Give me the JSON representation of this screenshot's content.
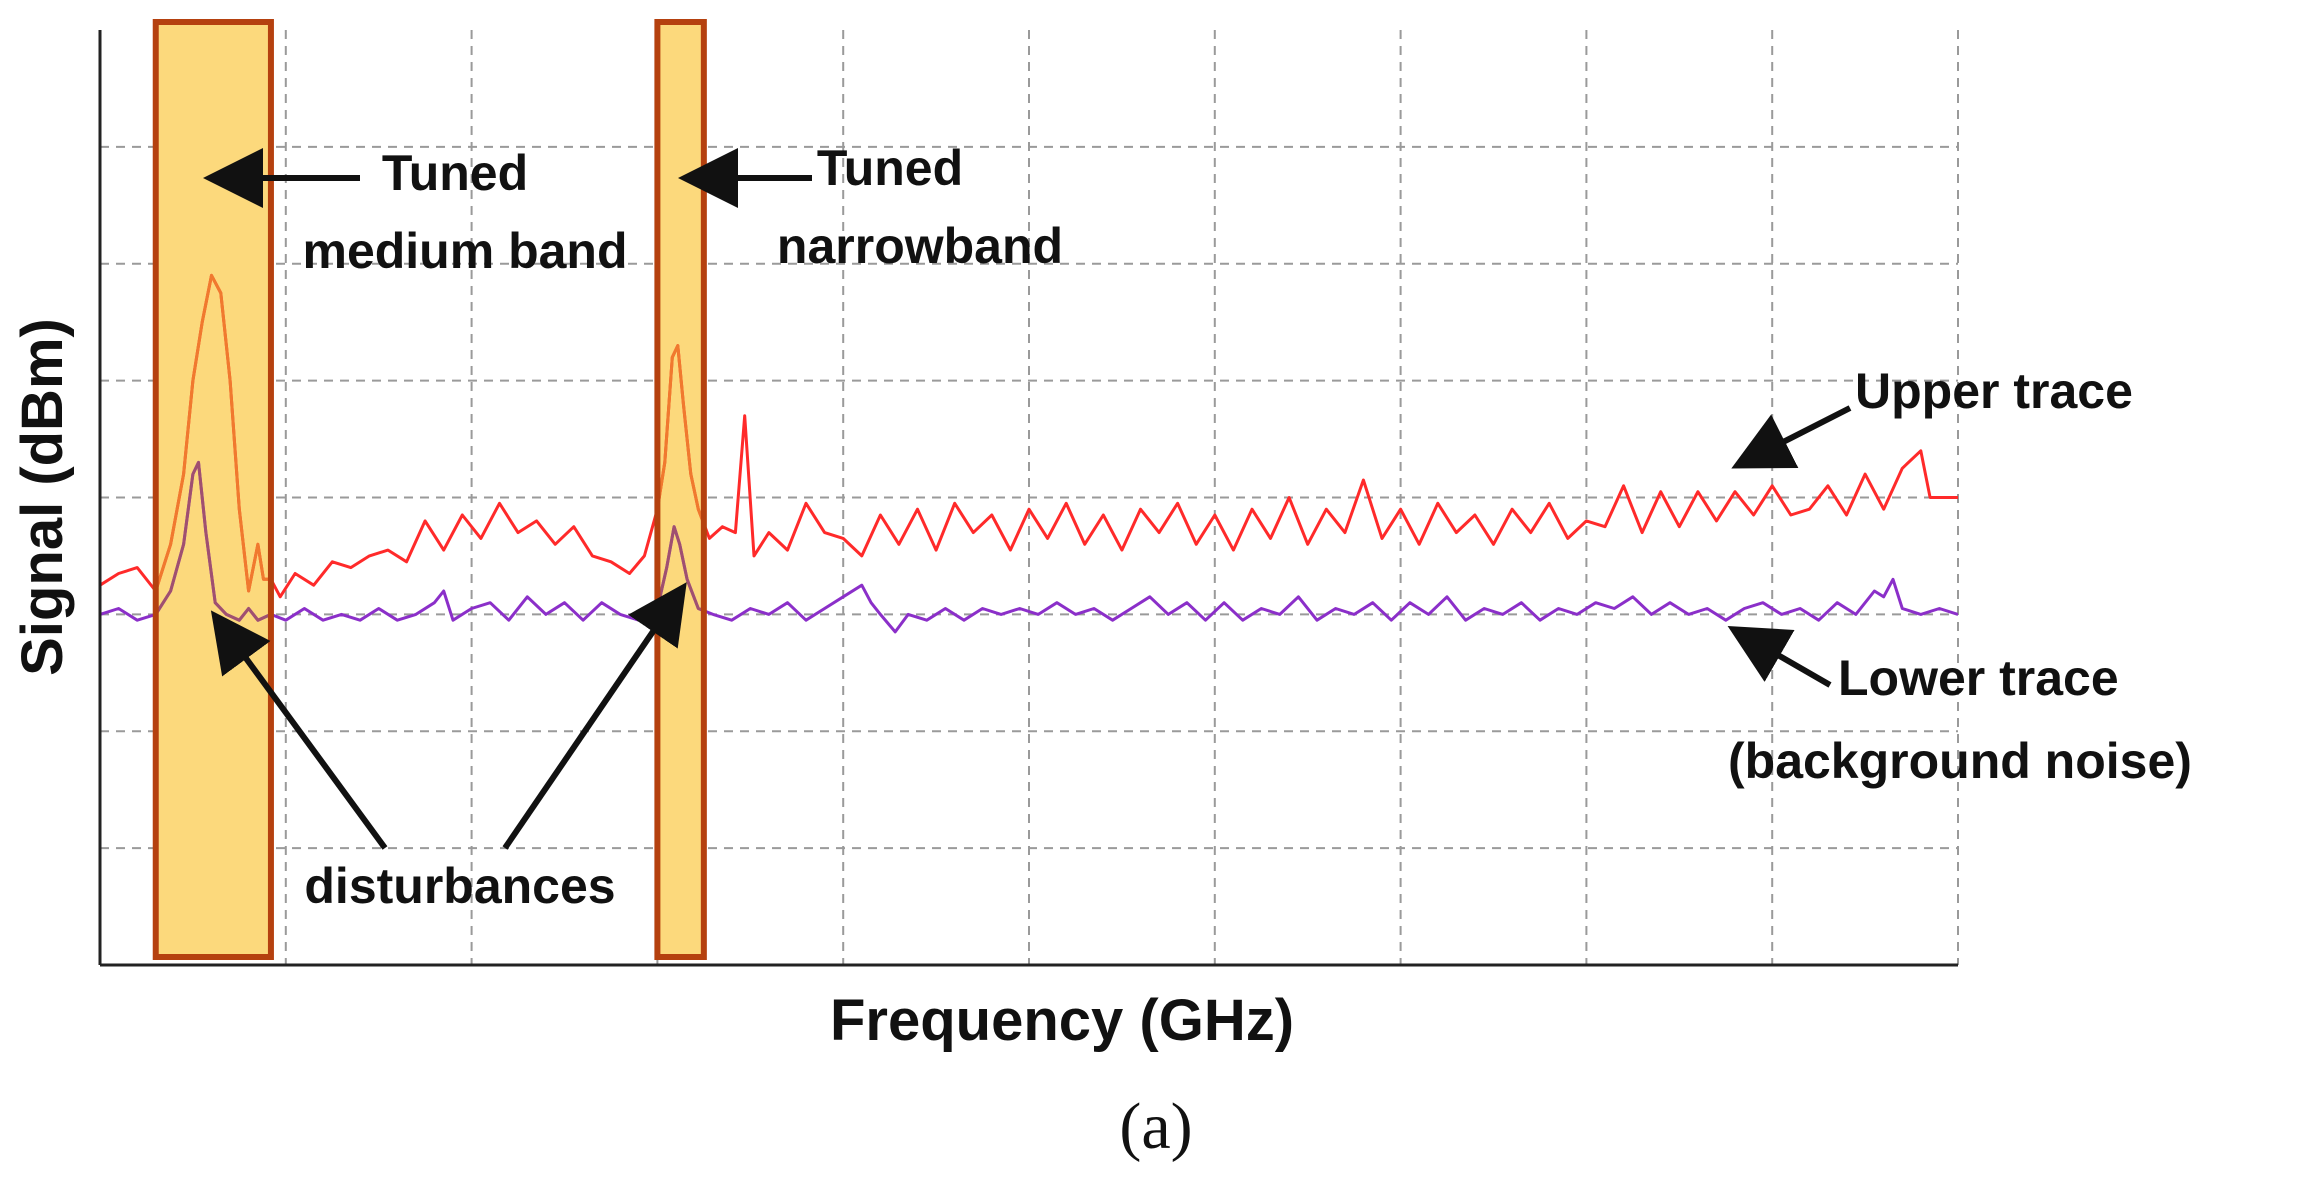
{
  "chart_data": {
    "type": "line",
    "xlabel": "Frequency (GHz)",
    "ylabel": "Signal (dBm)",
    "panel_label": "(a)",
    "x_ticks": 10,
    "y_ticks": 8,
    "xlim": [
      0,
      10
    ],
    "ylim": [
      0,
      8
    ],
    "grid": true,
    "grid_style": "dashed",
    "bands": [
      {
        "name": "medium",
        "x0": 0.3,
        "x1": 0.92,
        "fill": "#fcd97c",
        "stroke": "#b5410f"
      },
      {
        "name": "narrow",
        "x0": 3.0,
        "x1": 3.25,
        "fill": "#fcd97c",
        "stroke": "#b5410f"
      }
    ],
    "series": [
      {
        "role": "upper",
        "color": "#ff2a2a",
        "band_color": "#f07a2e",
        "points": [
          [
            0.0,
            3.25
          ],
          [
            0.1,
            3.35
          ],
          [
            0.2,
            3.4
          ],
          [
            0.3,
            3.2
          ],
          [
            0.38,
            3.6
          ],
          [
            0.45,
            4.2
          ],
          [
            0.5,
            5.0
          ],
          [
            0.55,
            5.5
          ],
          [
            0.6,
            5.9
          ],
          [
            0.65,
            5.75
          ],
          [
            0.7,
            5.0
          ],
          [
            0.75,
            3.9
          ],
          [
            0.8,
            3.2
          ],
          [
            0.85,
            3.6
          ],
          [
            0.88,
            3.3
          ],
          [
            0.92,
            3.3
          ],
          [
            0.97,
            3.15
          ],
          [
            1.05,
            3.35
          ],
          [
            1.15,
            3.25
          ],
          [
            1.25,
            3.45
          ],
          [
            1.35,
            3.4
          ],
          [
            1.45,
            3.5
          ],
          [
            1.55,
            3.55
          ],
          [
            1.65,
            3.45
          ],
          [
            1.75,
            3.8
          ],
          [
            1.85,
            3.55
          ],
          [
            1.95,
            3.85
          ],
          [
            2.05,
            3.65
          ],
          [
            2.15,
            3.95
          ],
          [
            2.25,
            3.7
          ],
          [
            2.35,
            3.8
          ],
          [
            2.45,
            3.6
          ],
          [
            2.55,
            3.75
          ],
          [
            2.65,
            3.5
          ],
          [
            2.75,
            3.45
          ],
          [
            2.85,
            3.35
          ],
          [
            2.93,
            3.5
          ],
          [
            3.0,
            3.9
          ],
          [
            3.04,
            4.3
          ],
          [
            3.08,
            5.2
          ],
          [
            3.11,
            5.3
          ],
          [
            3.14,
            4.8
          ],
          [
            3.18,
            4.2
          ],
          [
            3.22,
            3.9
          ],
          [
            3.28,
            3.65
          ],
          [
            3.35,
            3.75
          ],
          [
            3.42,
            3.7
          ],
          [
            3.47,
            4.7
          ],
          [
            3.52,
            3.5
          ],
          [
            3.6,
            3.7
          ],
          [
            3.7,
            3.55
          ],
          [
            3.8,
            3.95
          ],
          [
            3.9,
            3.7
          ],
          [
            4.0,
            3.65
          ],
          [
            4.1,
            3.5
          ],
          [
            4.2,
            3.85
          ],
          [
            4.3,
            3.6
          ],
          [
            4.4,
            3.9
          ],
          [
            4.5,
            3.55
          ],
          [
            4.6,
            3.95
          ],
          [
            4.7,
            3.7
          ],
          [
            4.8,
            3.85
          ],
          [
            4.9,
            3.55
          ],
          [
            5.0,
            3.9
          ],
          [
            5.1,
            3.65
          ],
          [
            5.2,
            3.95
          ],
          [
            5.3,
            3.6
          ],
          [
            5.4,
            3.85
          ],
          [
            5.5,
            3.55
          ],
          [
            5.6,
            3.9
          ],
          [
            5.7,
            3.7
          ],
          [
            5.8,
            3.95
          ],
          [
            5.9,
            3.6
          ],
          [
            6.0,
            3.85
          ],
          [
            6.1,
            3.55
          ],
          [
            6.2,
            3.9
          ],
          [
            6.3,
            3.65
          ],
          [
            6.4,
            4.0
          ],
          [
            6.5,
            3.6
          ],
          [
            6.6,
            3.9
          ],
          [
            6.7,
            3.7
          ],
          [
            6.8,
            4.15
          ],
          [
            6.9,
            3.65
          ],
          [
            7.0,
            3.9
          ],
          [
            7.1,
            3.6
          ],
          [
            7.2,
            3.95
          ],
          [
            7.3,
            3.7
          ],
          [
            7.4,
            3.85
          ],
          [
            7.5,
            3.6
          ],
          [
            7.6,
            3.9
          ],
          [
            7.7,
            3.7
          ],
          [
            7.8,
            3.95
          ],
          [
            7.9,
            3.65
          ],
          [
            8.0,
            3.8
          ],
          [
            8.1,
            3.75
          ],
          [
            8.2,
            4.1
          ],
          [
            8.3,
            3.7
          ],
          [
            8.4,
            4.05
          ],
          [
            8.5,
            3.75
          ],
          [
            8.6,
            4.05
          ],
          [
            8.7,
            3.8
          ],
          [
            8.8,
            4.05
          ],
          [
            8.9,
            3.85
          ],
          [
            9.0,
            4.1
          ],
          [
            9.1,
            3.85
          ],
          [
            9.2,
            3.9
          ],
          [
            9.3,
            4.1
          ],
          [
            9.4,
            3.85
          ],
          [
            9.5,
            4.2
          ],
          [
            9.6,
            3.9
          ],
          [
            9.7,
            4.25
          ],
          [
            9.8,
            4.4
          ],
          [
            9.85,
            4.0
          ],
          [
            9.9,
            4.0
          ],
          [
            10.0,
            4.0
          ]
        ]
      },
      {
        "role": "lower",
        "color": "#8b2fc9",
        "band_color": "#a0506f",
        "points": [
          [
            0.0,
            3.0
          ],
          [
            0.1,
            3.05
          ],
          [
            0.2,
            2.95
          ],
          [
            0.3,
            3.0
          ],
          [
            0.38,
            3.2
          ],
          [
            0.45,
            3.6
          ],
          [
            0.5,
            4.2
          ],
          [
            0.53,
            4.3
          ],
          [
            0.57,
            3.7
          ],
          [
            0.62,
            3.1
          ],
          [
            0.68,
            3.0
          ],
          [
            0.75,
            2.95
          ],
          [
            0.8,
            3.05
          ],
          [
            0.85,
            2.95
          ],
          [
            0.92,
            3.0
          ],
          [
            1.0,
            2.95
          ],
          [
            1.1,
            3.05
          ],
          [
            1.2,
            2.95
          ],
          [
            1.3,
            3.0
          ],
          [
            1.4,
            2.95
          ],
          [
            1.5,
            3.05
          ],
          [
            1.6,
            2.95
          ],
          [
            1.7,
            3.0
          ],
          [
            1.8,
            3.1
          ],
          [
            1.85,
            3.2
          ],
          [
            1.9,
            2.95
          ],
          [
            2.0,
            3.05
          ],
          [
            2.1,
            3.1
          ],
          [
            2.2,
            2.95
          ],
          [
            2.3,
            3.15
          ],
          [
            2.4,
            3.0
          ],
          [
            2.5,
            3.1
          ],
          [
            2.6,
            2.95
          ],
          [
            2.7,
            3.1
          ],
          [
            2.8,
            3.0
          ],
          [
            2.9,
            2.95
          ],
          [
            3.0,
            3.05
          ],
          [
            3.05,
            3.4
          ],
          [
            3.09,
            3.75
          ],
          [
            3.12,
            3.6
          ],
          [
            3.16,
            3.3
          ],
          [
            3.22,
            3.05
          ],
          [
            3.3,
            3.0
          ],
          [
            3.4,
            2.95
          ],
          [
            3.5,
            3.05
          ],
          [
            3.6,
            3.0
          ],
          [
            3.7,
            3.1
          ],
          [
            3.8,
            2.95
          ],
          [
            3.9,
            3.05
          ],
          [
            4.0,
            3.15
          ],
          [
            4.1,
            3.25
          ],
          [
            4.15,
            3.1
          ],
          [
            4.2,
            3.0
          ],
          [
            4.28,
            2.85
          ],
          [
            4.35,
            3.0
          ],
          [
            4.45,
            2.95
          ],
          [
            4.55,
            3.05
          ],
          [
            4.65,
            2.95
          ],
          [
            4.75,
            3.05
          ],
          [
            4.85,
            3.0
          ],
          [
            4.95,
            3.05
          ],
          [
            5.05,
            3.0
          ],
          [
            5.15,
            3.1
          ],
          [
            5.25,
            3.0
          ],
          [
            5.35,
            3.05
          ],
          [
            5.45,
            2.95
          ],
          [
            5.55,
            3.05
          ],
          [
            5.65,
            3.15
          ],
          [
            5.75,
            3.0
          ],
          [
            5.85,
            3.1
          ],
          [
            5.95,
            2.95
          ],
          [
            6.05,
            3.1
          ],
          [
            6.15,
            2.95
          ],
          [
            6.25,
            3.05
          ],
          [
            6.35,
            3.0
          ],
          [
            6.45,
            3.15
          ],
          [
            6.55,
            2.95
          ],
          [
            6.65,
            3.05
          ],
          [
            6.75,
            3.0
          ],
          [
            6.85,
            3.1
          ],
          [
            6.95,
            2.95
          ],
          [
            7.05,
            3.1
          ],
          [
            7.15,
            3.0
          ],
          [
            7.25,
            3.15
          ],
          [
            7.35,
            2.95
          ],
          [
            7.45,
            3.05
          ],
          [
            7.55,
            3.0
          ],
          [
            7.65,
            3.1
          ],
          [
            7.75,
            2.95
          ],
          [
            7.85,
            3.05
          ],
          [
            7.95,
            3.0
          ],
          [
            8.05,
            3.1
          ],
          [
            8.15,
            3.05
          ],
          [
            8.25,
            3.15
          ],
          [
            8.35,
            3.0
          ],
          [
            8.45,
            3.1
          ],
          [
            8.55,
            3.0
          ],
          [
            8.65,
            3.05
          ],
          [
            8.75,
            2.95
          ],
          [
            8.85,
            3.05
          ],
          [
            8.95,
            3.1
          ],
          [
            9.05,
            3.0
          ],
          [
            9.15,
            3.05
          ],
          [
            9.25,
            2.95
          ],
          [
            9.35,
            3.1
          ],
          [
            9.45,
            3.0
          ],
          [
            9.55,
            3.2
          ],
          [
            9.6,
            3.15
          ],
          [
            9.65,
            3.3
          ],
          [
            9.7,
            3.05
          ],
          [
            9.8,
            3.0
          ],
          [
            9.9,
            3.05
          ],
          [
            10.0,
            3.0
          ]
        ]
      }
    ],
    "annotations": [
      {
        "name": "tuned-medium-band",
        "lines": [
          "Tuned",
          "medium band"
        ]
      },
      {
        "name": "tuned-narrowband",
        "lines": [
          "Tuned",
          "narrowband"
        ]
      },
      {
        "name": "upper-trace",
        "lines": [
          "Upper trace"
        ]
      },
      {
        "name": "lower-trace",
        "lines": [
          "Lower trace",
          "(background noise)"
        ]
      },
      {
        "name": "disturbances",
        "lines": [
          "disturbances"
        ]
      }
    ]
  }
}
